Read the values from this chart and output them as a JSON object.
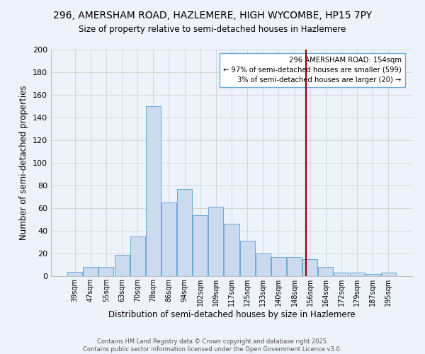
{
  "title": "296, AMERSHAM ROAD, HAZLEMERE, HIGH WYCOMBE, HP15 7PY",
  "subtitle": "Size of property relative to semi-detached houses in Hazlemere",
  "xlabel": "Distribution of semi-detached houses by size in Hazlemere",
  "ylabel": "Number of semi-detached properties",
  "bin_labels": [
    "39sqm",
    "47sqm",
    "55sqm",
    "63sqm",
    "70sqm",
    "78sqm",
    "86sqm",
    "94sqm",
    "102sqm",
    "109sqm",
    "117sqm",
    "125sqm",
    "133sqm",
    "140sqm",
    "148sqm",
    "156sqm",
    "164sqm",
    "172sqm",
    "179sqm",
    "187sqm",
    "195sqm"
  ],
  "bar_heights": [
    4,
    8,
    8,
    19,
    35,
    150,
    65,
    77,
    54,
    61,
    46,
    31,
    20,
    17,
    17,
    15,
    8,
    3,
    3,
    2,
    3
  ],
  "bar_color": "#ccdaf0",
  "bar_edge_color": "#6aaad4",
  "background_color": "#eef2fb",
  "grid_color": "#cccccc",
  "vline_color": "#8b0000",
  "annotation_title": "296 AMERSHAM ROAD: 154sqm",
  "annotation_line1": "← 97% of semi-detached houses are smaller (599)",
  "annotation_line2": "3% of semi-detached houses are larger (20) →",
  "annotation_box_color": "#ffffff",
  "annotation_box_edge": "#6aaad4",
  "ylim": [
    0,
    200
  ],
  "yticks": [
    0,
    20,
    40,
    60,
    80,
    100,
    120,
    140,
    160,
    180,
    200
  ],
  "footer_line1": "Contains HM Land Registry data © Crown copyright and database right 2025.",
  "footer_line2": "Contains public sector information licensed under the Open Government Licence v3.0."
}
